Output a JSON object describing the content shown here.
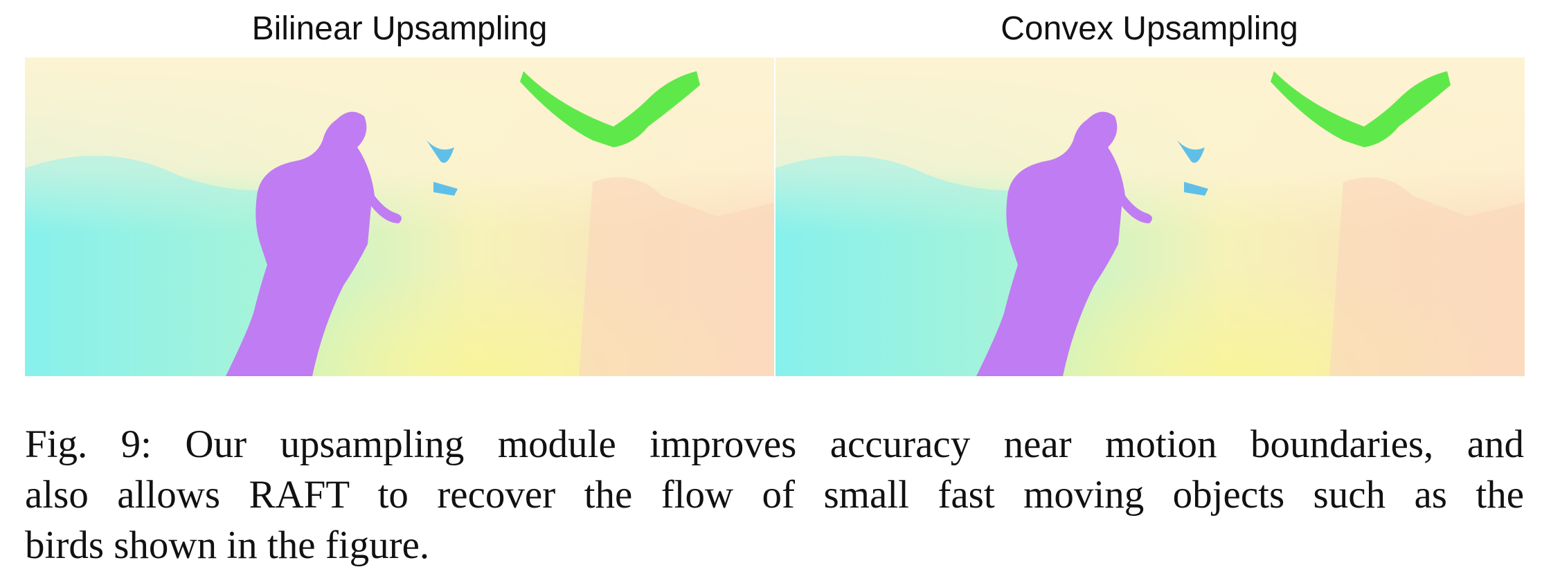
{
  "figure": {
    "panels": [
      {
        "title": "Bilinear Upsampling"
      },
      {
        "title": "Convex Upsampling"
      }
    ],
    "caption": {
      "lines": [
        "Fig. 9: Our upsampling module improves accuracy near motion boundaries, and",
        "also allows RAFT to recover the flow of small fast moving objects such as the",
        "birds shown in the figure."
      ]
    }
  }
}
